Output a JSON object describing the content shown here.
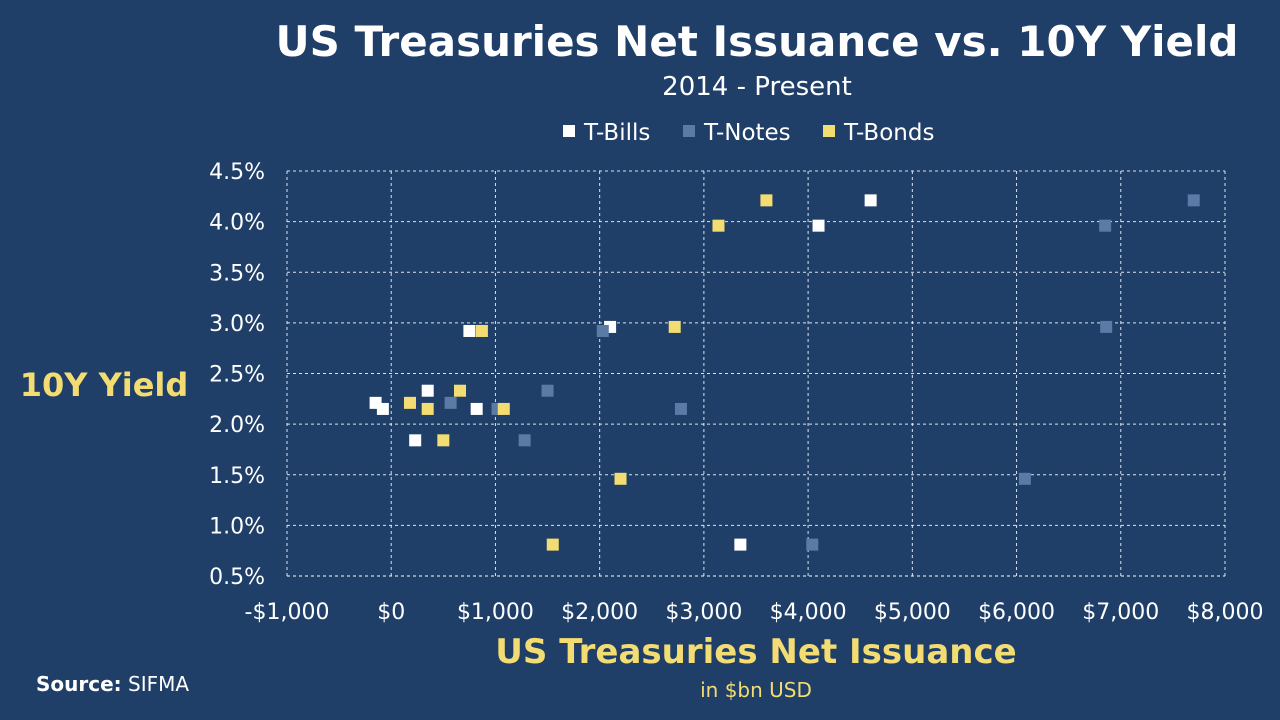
{
  "chart_data": {
    "type": "scatter",
    "title": "US Treasuries Net Issuance vs. 10Y Yield",
    "subtitle": "2014 - Present",
    "xlabel": "US Treasuries Net Issuance",
    "xlabel_sub": "in $bn USD",
    "ylabel": "10Y Yield",
    "xlim": [
      -1000,
      8000
    ],
    "ylim": [
      0.5,
      4.5
    ],
    "x_ticks": [
      -1000,
      0,
      1000,
      2000,
      3000,
      4000,
      5000,
      6000,
      7000,
      8000
    ],
    "x_tick_labels": [
      "-$1,000",
      "$0",
      "$1,000",
      "$2,000",
      "$3,000",
      "$4,000",
      "$5,000",
      "$6,000",
      "$7,000",
      "$8,000"
    ],
    "y_ticks": [
      0.5,
      1.0,
      1.5,
      2.0,
      2.5,
      3.0,
      3.5,
      4.0,
      4.5
    ],
    "y_tick_labels": [
      "0.5%",
      "1.0%",
      "1.5%",
      "2.0%",
      "2.5%",
      "3.0%",
      "3.5%",
      "4.0%",
      "4.5%"
    ],
    "grid": true,
    "legend_position": "top-center",
    "series": [
      {
        "name": "T-Bills",
        "color": "#ffffff",
        "points": [
          [
            -150,
            2.21
          ],
          [
            -80,
            2.15
          ],
          [
            230,
            1.84
          ],
          [
            350,
            2.33
          ],
          [
            750,
            2.92
          ],
          [
            820,
            2.15
          ],
          [
            2100,
            2.96
          ],
          [
            3350,
            0.81
          ],
          [
            4100,
            3.96
          ],
          [
            4600,
            4.21
          ]
        ]
      },
      {
        "name": "T-Notes",
        "color": "#5b7ba6",
        "points": [
          [
            570,
            2.21
          ],
          [
            1020,
            2.15
          ],
          [
            1280,
            1.84
          ],
          [
            1500,
            2.33
          ],
          [
            2030,
            2.92
          ],
          [
            2780,
            2.15
          ],
          [
            4040,
            0.81
          ],
          [
            6080,
            1.46
          ],
          [
            6860,
            2.96
          ],
          [
            6850,
            3.96
          ],
          [
            7700,
            4.21
          ]
        ]
      },
      {
        "name": "T-Bonds",
        "color": "#f3dc72",
        "points": [
          [
            180,
            2.21
          ],
          [
            350,
            2.15
          ],
          [
            500,
            1.84
          ],
          [
            660,
            2.33
          ],
          [
            870,
            2.92
          ],
          [
            1080,
            2.15
          ],
          [
            1550,
            0.81
          ],
          [
            2200,
            1.46
          ],
          [
            2720,
            2.96
          ],
          [
            3140,
            3.96
          ],
          [
            3600,
            4.21
          ]
        ]
      }
    ]
  },
  "source": {
    "label": "Source:",
    "value": "SIFMA"
  }
}
